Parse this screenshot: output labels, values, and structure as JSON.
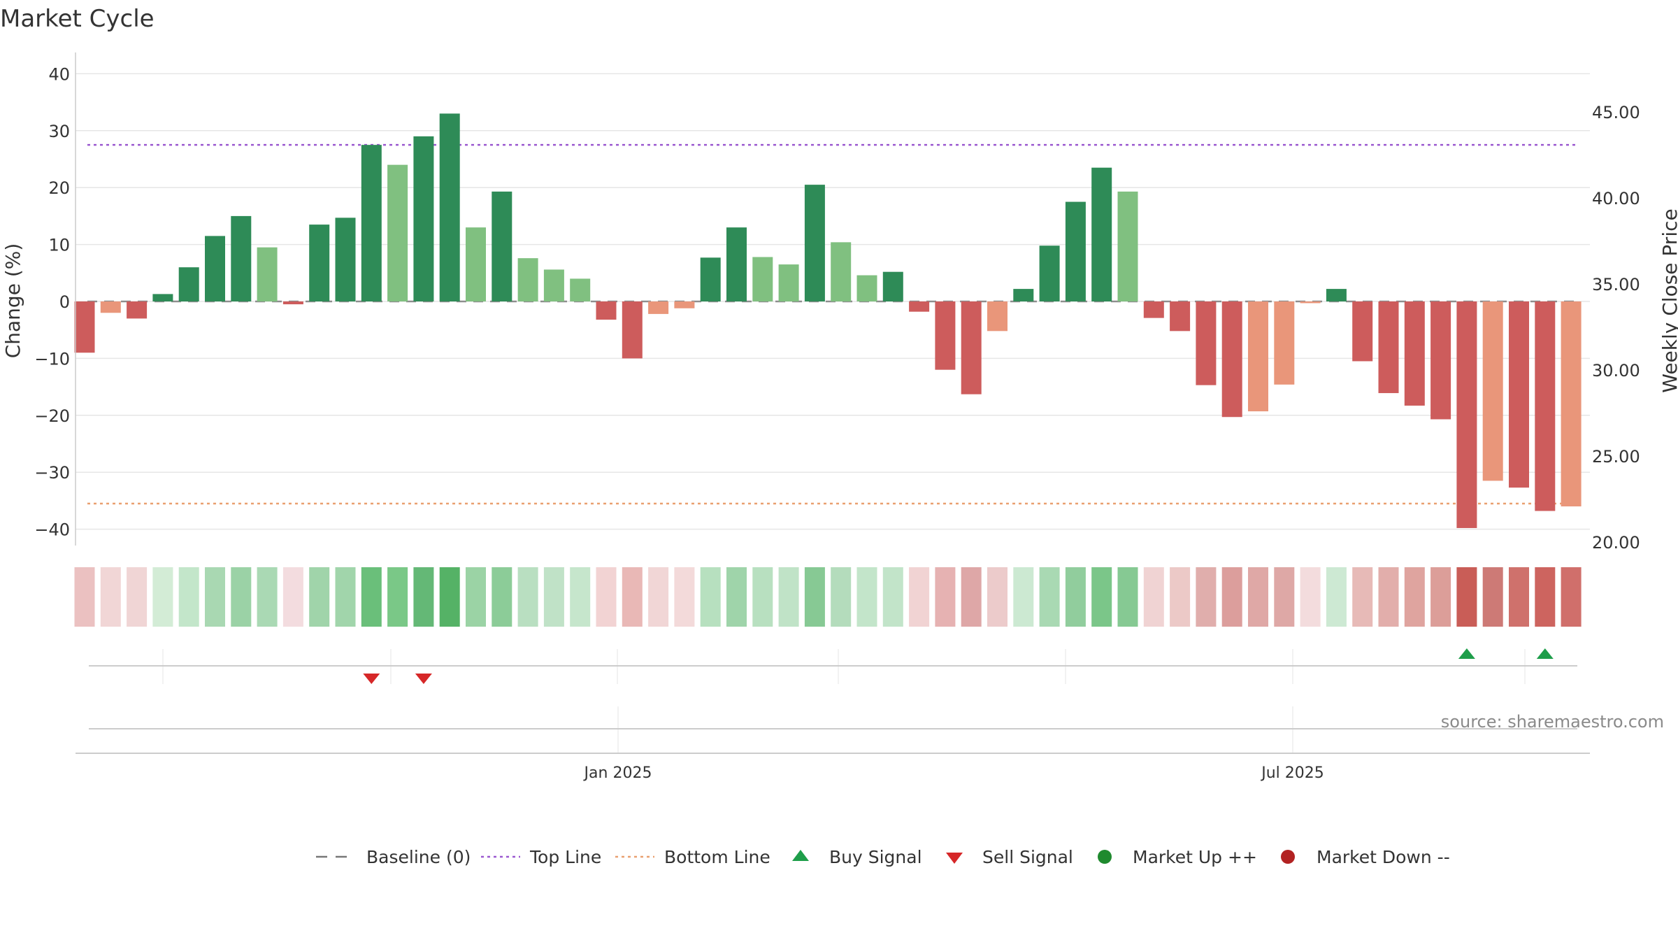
{
  "chart_data": {
    "type": "bar",
    "title": "Market Cycle",
    "ylabel": "Change (%)",
    "y2label": "Weekly Close Price",
    "ylim": [
      -43,
      44
    ],
    "yticks": [
      40,
      30,
      20,
      10,
      0,
      -10,
      -20,
      -30,
      -40
    ],
    "ytick_labels": [
      "40",
      "30",
      "20",
      "10",
      "0",
      "−10",
      "−20",
      "−30",
      "−40"
    ],
    "y2lim": [
      20,
      47.8
    ],
    "y2ticks": [
      45,
      40,
      35,
      30,
      25,
      20
    ],
    "y2tick_labels": [
      "45.00",
      "40.00",
      "35.00",
      "30.00",
      "25.00",
      "20.00"
    ],
    "top_line": 27.5,
    "bottom_line": -35.5,
    "baseline": 0,
    "xtick_labels": [
      "Jan 2025",
      "Jul 2025"
    ],
    "grid": true,
    "legend_position": "bottom-center",
    "source": "source: sharemaestro.com",
    "values": [
      -9,
      -2,
      -3,
      1.3,
      6,
      11.5,
      15,
      9.5,
      -0.5,
      13.5,
      14.7,
      27.5,
      24,
      29,
      33,
      13,
      19.3,
      7.6,
      5.6,
      4,
      -3.2,
      -10,
      -2.2,
      -1.2,
      7.7,
      13,
      7.8,
      6.5,
      20.5,
      10.4,
      4.6,
      5.2,
      -1.8,
      -12,
      -16.3,
      -5.2,
      2.2,
      9.8,
      17.5,
      23.5,
      19.3,
      -2.9,
      -5.2,
      -14.7,
      -20.3,
      -19.3,
      -14.6,
      -0.3,
      2.2,
      -10.5,
      -16.1,
      -18.3,
      -20.7,
      -39.8,
      -31.5,
      -32.7,
      -36.8,
      -36
    ],
    "bar_colors": [
      "#cd5c5c",
      "#e9967a",
      "#cd5c5c",
      "#2e8b57",
      "#2e8b57",
      "#2e8b57",
      "#2e8b57",
      "#80c080",
      "#cd5c5c",
      "#2e8b57",
      "#2e8b57",
      "#2e8b57",
      "#80c080",
      "#2e8b57",
      "#2e8b57",
      "#80c080",
      "#2e8b57",
      "#80c080",
      "#80c080",
      "#80c080",
      "#cd5c5c",
      "#cd5c5c",
      "#e9967a",
      "#e9967a",
      "#2e8b57",
      "#2e8b57",
      "#80c080",
      "#80c080",
      "#2e8b57",
      "#80c080",
      "#80c080",
      "#2e8b57",
      "#cd5c5c",
      "#cd5c5c",
      "#cd5c5c",
      "#e9967a",
      "#2e8b57",
      "#2e8b57",
      "#2e8b57",
      "#2e8b57",
      "#80c080",
      "#cd5c5c",
      "#cd5c5c",
      "#cd5c5c",
      "#cd5c5c",
      "#e9967a",
      "#e9967a",
      "#e9967a",
      "#2e8b57",
      "#cd5c5c",
      "#cd5c5c",
      "#cd5c5c",
      "#cd5c5c",
      "#cd5c5c",
      "#e9967a",
      "#cd5c5c",
      "#cd5c5c",
      "#e9967a"
    ],
    "heat_colors": [
      "#ebc1c1",
      "#f1d6d6",
      "#f0d5d5",
      "#d3ecd6",
      "#c3e6ca",
      "#a9d8b2",
      "#9bd2a6",
      "#aad9b4",
      "#f3dcdf",
      "#a0d4aa",
      "#a1d5ab",
      "#6abf7a",
      "#7ac887",
      "#64b876",
      "#55b266",
      "#9bd3a5",
      "#8ccc98",
      "#b9dfc1",
      "#c0e2c7",
      "#c6e6cc",
      "#f2d3d3",
      "#e9b8b6",
      "#f1d6d6",
      "#f3dada",
      "#b7e0bf",
      "#9fd4aa",
      "#b8e0c0",
      "#c0e3c7",
      "#87c994",
      "#b4dcbc",
      "#c3e5ca",
      "#c2e4c9",
      "#f1d3d3",
      "#e6b2b2",
      "#dea7a7",
      "#eccbcb",
      "#cce9d2",
      "#a9d9b3",
      "#91cd9d",
      "#7bc689",
      "#86c993",
      "#f0d3d3",
      "#ecc9c7",
      "#e0aeac",
      "#dc9e9c",
      "#dfa8a6",
      "#dea8a6",
      "#f3dcdd",
      "#cde9d3",
      "#e7bab7",
      "#e2aeab",
      "#dfa49f",
      "#dc9e99",
      "#c95d57",
      "#cd7a76",
      "#cf716c",
      "#cd645f",
      "#d06f6b"
    ],
    "buy_signals": [
      53,
      56
    ],
    "sell_signals": [
      11,
      13
    ],
    "legend": [
      {
        "label": "Baseline (0)",
        "symbol": "dash-line",
        "color": "#777777"
      },
      {
        "label": "Top Line",
        "symbol": "dotted-line",
        "color": "#9b59d0"
      },
      {
        "label": "Bottom Line",
        "symbol": "dotted-line",
        "color": "#e9a070"
      },
      {
        "label": "Buy Signal",
        "symbol": "triangle-up",
        "color": "#1e9e4a"
      },
      {
        "label": "Sell Signal",
        "symbol": "triangle-down",
        "color": "#d62728"
      },
      {
        "label": "Market Up ++",
        "symbol": "circle",
        "color": "#1f8a2e"
      },
      {
        "label": "Market Down --",
        "symbol": "circle",
        "color": "#b22222"
      }
    ]
  }
}
